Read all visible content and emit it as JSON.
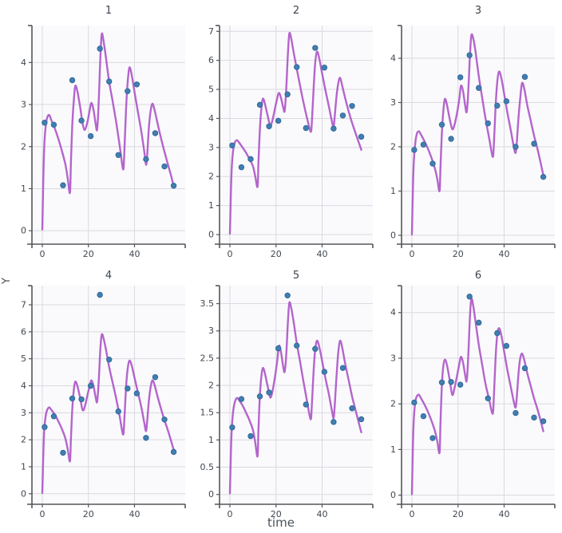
{
  "figure": {
    "ylabel": "Y",
    "xlabel": "time"
  },
  "chart_data": {
    "type": "line",
    "layout": "2x3 small multiples, fitted line with observed scatter points",
    "x_domain": [
      -4.5,
      62
    ],
    "x_ticks": [
      0,
      20,
      40
    ],
    "colors": {
      "line": "#ae58c8",
      "point_fill": "#4080b0",
      "point_edge": "#33679b",
      "plot_bg": "#fafafc",
      "grid": "#d9d9e0",
      "axis": "#55565a",
      "tick_text": "#404850"
    },
    "scatter_x": [
      1,
      5,
      9,
      13,
      17,
      21,
      25,
      29,
      33,
      37,
      41,
      45,
      49,
      53,
      57
    ],
    "line_t": [
      0,
      0.4,
      0.8,
      1.5,
      2.2,
      3,
      4,
      5.5,
      7,
      8.5,
      10,
      11,
      12,
      12.4,
      13,
      13.6,
      14.3,
      15.2,
      16.3,
      17.5,
      18.5,
      19.7,
      20.6,
      21.3,
      22.2,
      23.2,
      23.8,
      24.5,
      25.2,
      25.8,
      26.6,
      27.6,
      29,
      30.5,
      32,
      33.5,
      35,
      35.5,
      36.3,
      37,
      37.8,
      38.8,
      40,
      41.5,
      43,
      44.2,
      45,
      45.5,
      46.3,
      47,
      47.8,
      48.8,
      50,
      51.5,
      53,
      54.5,
      56,
      57
    ],
    "panels": [
      {
        "title": "1",
        "y_domain": [
          -0.32,
          4.88
        ],
        "y_ticks": [
          0,
          1,
          2,
          3,
          4
        ],
        "line_y": [
          0.03,
          1.1,
          1.95,
          2.5,
          2.7,
          2.75,
          2.62,
          2.42,
          2.18,
          1.9,
          1.58,
          1.25,
          0.9,
          1.6,
          2.5,
          3.05,
          3.44,
          3.32,
          2.98,
          2.55,
          2.4,
          2.62,
          2.88,
          3.04,
          2.88,
          2.52,
          2.42,
          3.1,
          4.15,
          4.68,
          4.5,
          4.12,
          3.55,
          3.08,
          2.6,
          2.05,
          1.47,
          1.75,
          2.85,
          3.5,
          3.88,
          3.7,
          3.3,
          2.82,
          2.35,
          1.9,
          1.57,
          1.8,
          2.5,
          2.85,
          3.02,
          2.85,
          2.55,
          2.2,
          1.88,
          1.58,
          1.28,
          1.05
        ],
        "scatter_y": [
          2.57,
          2.52,
          1.08,
          3.58,
          2.62,
          2.25,
          4.33,
          3.55,
          1.8,
          3.32,
          3.48,
          1.7,
          2.32,
          1.53,
          1.07
        ]
      },
      {
        "title": "2",
        "y_domain": [
          -0.33,
          7.2
        ],
        "y_ticks": [
          0,
          1,
          2,
          3,
          4,
          5,
          6,
          7
        ],
        "line_y": [
          0.03,
          1.3,
          2.3,
          2.95,
          3.18,
          3.25,
          3.17,
          3.0,
          2.82,
          2.6,
          2.35,
          2.0,
          1.65,
          2.5,
          3.6,
          4.3,
          4.68,
          4.5,
          4.12,
          3.76,
          3.95,
          4.4,
          4.72,
          4.88,
          4.7,
          4.35,
          4.28,
          5.1,
          6.3,
          6.93,
          6.75,
          6.3,
          5.72,
          5.1,
          4.52,
          4.0,
          3.55,
          3.8,
          5.0,
          5.9,
          6.3,
          6.05,
          5.55,
          4.95,
          4.4,
          3.92,
          3.72,
          4.1,
          4.8,
          5.2,
          5.4,
          5.1,
          4.7,
          4.25,
          3.85,
          3.5,
          3.15,
          2.92
        ],
        "scatter_y": [
          3.07,
          2.32,
          2.6,
          4.47,
          3.73,
          3.92,
          4.83,
          5.77,
          3.67,
          6.43,
          5.75,
          3.65,
          4.1,
          4.43,
          3.37
        ]
      },
      {
        "title": "3",
        "y_domain": [
          -0.2,
          4.74
        ],
        "y_ticks": [
          0,
          1,
          2,
          3,
          4
        ],
        "line_y": [
          0.02,
          0.95,
          1.65,
          2.1,
          2.3,
          2.35,
          2.27,
          2.12,
          1.95,
          1.75,
          1.5,
          1.27,
          1.0,
          1.55,
          2.3,
          2.8,
          3.08,
          2.95,
          2.65,
          2.4,
          2.5,
          2.8,
          3.1,
          3.38,
          3.25,
          2.9,
          2.8,
          3.3,
          4.1,
          4.52,
          4.45,
          4.15,
          3.6,
          3.1,
          2.62,
          2.2,
          1.78,
          2.0,
          2.9,
          3.45,
          3.7,
          3.55,
          3.2,
          2.75,
          2.35,
          2.0,
          1.86,
          2.1,
          2.7,
          3.1,
          3.44,
          3.3,
          2.95,
          2.6,
          2.25,
          1.95,
          1.6,
          1.36
        ],
        "scatter_y": [
          1.93,
          2.05,
          1.62,
          2.5,
          2.18,
          3.57,
          4.07,
          3.33,
          2.53,
          2.93,
          3.03,
          2.0,
          3.58,
          2.07,
          1.32
        ]
      },
      {
        "title": "4",
        "y_domain": [
          -0.39,
          7.71
        ],
        "y_ticks": [
          0,
          1,
          2,
          3,
          4,
          5,
          6,
          7
        ],
        "line_y": [
          0.03,
          1.3,
          2.3,
          2.9,
          3.12,
          3.2,
          3.1,
          2.92,
          2.68,
          2.4,
          2.05,
          1.65,
          1.2,
          2.0,
          3.1,
          3.8,
          4.15,
          4.0,
          3.6,
          3.1,
          3.25,
          3.7,
          4.0,
          4.2,
          4.0,
          3.55,
          3.42,
          4.2,
          5.4,
          5.9,
          5.75,
          5.35,
          4.7,
          4.12,
          3.55,
          2.9,
          2.2,
          2.6,
          3.9,
          4.6,
          4.93,
          4.75,
          4.3,
          3.75,
          3.2,
          2.65,
          2.32,
          2.7,
          3.5,
          3.95,
          4.2,
          4.0,
          3.6,
          3.15,
          2.72,
          2.35,
          1.92,
          1.62
        ],
        "scatter_y": [
          2.47,
          2.87,
          1.52,
          3.53,
          3.5,
          4.0,
          7.37,
          4.97,
          3.05,
          3.9,
          3.72,
          2.07,
          4.32,
          2.75,
          1.55
        ]
      },
      {
        "title": "5",
        "y_domain": [
          -0.18,
          3.83
        ],
        "y_ticks": [
          0,
          0.5,
          1,
          1.5,
          2,
          2.5,
          3,
          3.5
        ],
        "line_y": [
          0.02,
          0.7,
          1.2,
          1.55,
          1.7,
          1.77,
          1.73,
          1.63,
          1.5,
          1.36,
          1.18,
          0.95,
          0.7,
          1.2,
          1.8,
          2.15,
          2.32,
          2.22,
          2.0,
          1.78,
          1.9,
          2.2,
          2.48,
          2.73,
          2.6,
          2.32,
          2.26,
          2.6,
          3.2,
          3.52,
          3.42,
          3.18,
          2.78,
          2.42,
          2.05,
          1.7,
          1.38,
          1.6,
          2.25,
          2.65,
          2.82,
          2.7,
          2.45,
          2.12,
          1.83,
          1.55,
          1.4,
          1.65,
          2.2,
          2.6,
          2.82,
          2.68,
          2.4,
          2.1,
          1.8,
          1.55,
          1.3,
          1.14
        ],
        "scatter_y": [
          1.23,
          1.75,
          1.07,
          1.8,
          1.87,
          2.68,
          3.65,
          2.73,
          1.65,
          2.67,
          2.25,
          1.33,
          2.32,
          1.58,
          1.38
        ]
      },
      {
        "title": "6",
        "y_domain": [
          -0.2,
          4.59
        ],
        "y_ticks": [
          0,
          1,
          2,
          3,
          4
        ],
        "line_y": [
          0.02,
          1.0,
          1.65,
          2.05,
          2.17,
          2.2,
          2.12,
          1.98,
          1.82,
          1.63,
          1.4,
          1.18,
          0.93,
          1.6,
          2.4,
          2.82,
          2.97,
          2.85,
          2.55,
          2.2,
          2.35,
          2.65,
          2.88,
          3.03,
          2.9,
          2.6,
          2.52,
          3.1,
          3.95,
          4.3,
          4.15,
          3.8,
          3.3,
          2.85,
          2.42,
          2.1,
          1.78,
          2.1,
          3.0,
          3.5,
          3.66,
          3.5,
          3.15,
          2.72,
          2.35,
          2.05,
          1.92,
          2.15,
          2.7,
          3.0,
          3.1,
          2.95,
          2.68,
          2.4,
          2.12,
          1.88,
          1.6,
          1.4
        ],
        "scatter_y": [
          2.03,
          1.73,
          1.25,
          2.47,
          2.48,
          2.42,
          4.35,
          3.78,
          2.12,
          3.55,
          3.27,
          1.8,
          2.78,
          1.7,
          1.62
        ]
      }
    ]
  }
}
